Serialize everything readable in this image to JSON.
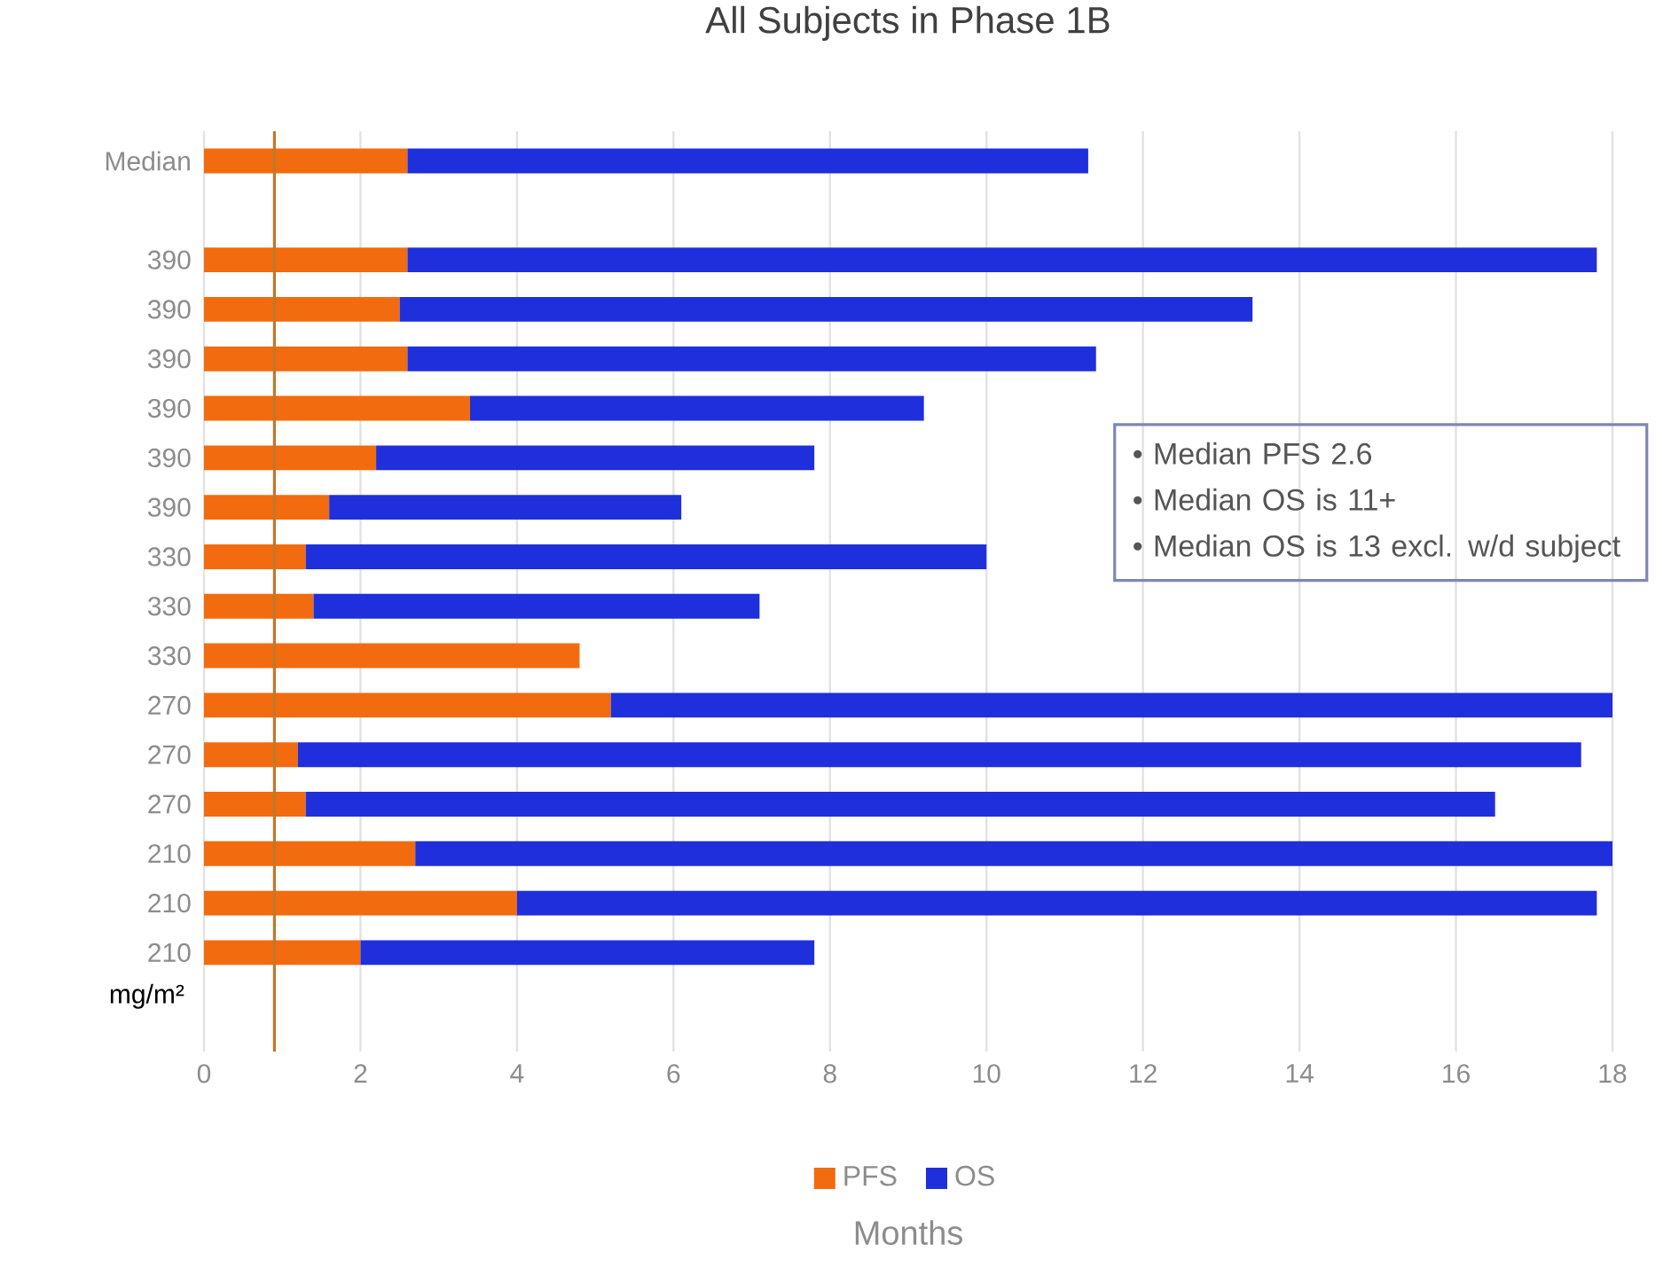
{
  "chart_data": {
    "type": "bar",
    "orientation": "horizontal",
    "stacked": true,
    "title": "All Subjects in Phase 1B",
    "xlabel": "Months",
    "ylabel": "mg/m²",
    "categories": [
      "Median",
      null,
      "390",
      "390",
      "390",
      "390",
      "390",
      "390",
      "330",
      "330",
      "330",
      "270",
      "270",
      "270",
      "210",
      "210",
      "210"
    ],
    "series": [
      {
        "name": "PFS",
        "color": "#f26b0f",
        "values": [
          2.6,
          null,
          2.6,
          2.5,
          2.6,
          3.4,
          2.2,
          1.6,
          1.3,
          1.4,
          4.8,
          5.2,
          1.2,
          1.3,
          2.7,
          4.0,
          2.0
        ]
      },
      {
        "name": "OS",
        "color": "#1f2fdc",
        "values": [
          8.7,
          null,
          15.2,
          10.9,
          8.8,
          5.8,
          5.6,
          4.5,
          8.7,
          5.7,
          null,
          12.8,
          16.4,
          15.2,
          15.3,
          13.8,
          5.8
        ]
      }
    ],
    "xlim": [
      0,
      18
    ],
    "xticks": [
      0,
      2,
      4,
      6,
      8,
      10,
      12,
      14,
      16,
      18
    ],
    "grid": "x",
    "legend": "bottom",
    "ref_lines": [
      {
        "axis": "x",
        "value": 0.9,
        "color": "#c0782a"
      }
    ],
    "annotations": [
      "• Median PFS 2.6",
      "• Median OS is 11+",
      "• Median OS is 13 excl. w/d subject"
    ]
  }
}
